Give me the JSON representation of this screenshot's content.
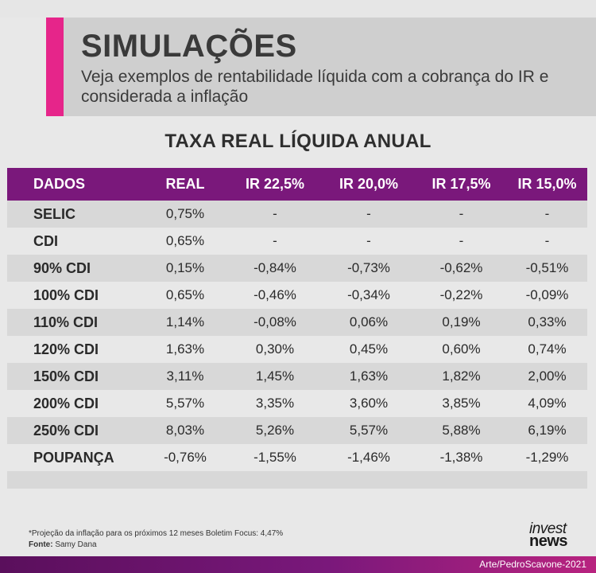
{
  "header": {
    "title": "SIMULAÇÕES",
    "subtitle": "Veja exemplos de rentabilidade líquida com a cobrança do IR e considerada a inflação"
  },
  "colors": {
    "accent": "#e6258a",
    "table_header": "#7a187b",
    "row_alt": "#d8d8d8",
    "background": "#e8e8e8"
  },
  "chart_data": {
    "type": "table",
    "title": "TAXA REAL LÍQUIDA ANUAL",
    "columns": [
      "DADOS",
      "REAL",
      "IR 22,5%",
      "IR 20,0%",
      "IR 17,5%",
      "IR 15,0%"
    ],
    "rows": [
      [
        "SELIC",
        "0,75%",
        "-",
        "-",
        "-",
        "-"
      ],
      [
        "CDI",
        "0,65%",
        "-",
        "-",
        "-",
        "-"
      ],
      [
        "90% CDI",
        "0,15%",
        "-0,84%",
        "-0,73%",
        "-0,62%",
        "-0,51%"
      ],
      [
        "100% CDI",
        "0,65%",
        "-0,46%",
        "-0,34%",
        "-0,22%",
        "-0,09%"
      ],
      [
        "110% CDI",
        "1,14%",
        "-0,08%",
        "0,06%",
        "0,19%",
        "0,33%"
      ],
      [
        "120% CDI",
        "1,63%",
        "0,30%",
        "0,45%",
        "0,60%",
        "0,74%"
      ],
      [
        "150% CDI",
        "3,11%",
        "1,45%",
        "1,63%",
        "1,82%",
        "2,00%"
      ],
      [
        "200% CDI",
        "5,57%",
        "3,35%",
        "3,60%",
        "3,85%",
        "4,09%"
      ],
      [
        "250% CDI",
        "8,03%",
        "5,26%",
        "5,57%",
        "5,88%",
        "6,19%"
      ],
      [
        "POUPANÇA",
        "-0,76%",
        "-1,55%",
        "-1,46%",
        "-1,38%",
        "-1,29%"
      ]
    ]
  },
  "footer": {
    "note": "*Projeção da inflação para os próximos 12 meses Boletim Focus: 4,47%",
    "source_label": "Fonte:",
    "source_value": "Samy Dana",
    "logo_line1": "invest",
    "logo_line2": "news",
    "credit": "Arte/PedroScavone-2021"
  }
}
